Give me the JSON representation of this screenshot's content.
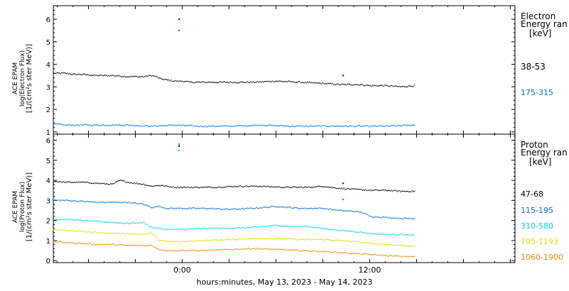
{
  "x_axis": {
    "label": "hours:minutes, May 13, 2023 - May 14, 2023",
    "ticks": [
      {
        "hour": 24,
        "label": "0:00"
      },
      {
        "hour": 36,
        "label": "12:00"
      }
    ],
    "range_hours": [
      15.75,
      45.3
    ]
  },
  "chart_data": [
    {
      "type": "scatter",
      "panel": "electron",
      "ylabel": [
        "ACE EPAM",
        "log(Electron Flux)",
        "[1/(cm²s ster MeV)]"
      ],
      "ylim": [
        0.9,
        6.6
      ],
      "yticks": [
        1,
        2,
        3,
        4,
        5,
        6
      ],
      "legend": {
        "title": "Electron",
        "subtitle": "Energy ran",
        "unit": "[keV]"
      },
      "series": [
        {
          "name": "38-53",
          "color": "#000000",
          "x": [
            15.75,
            16.5,
            17.0,
            17.6,
            18.5,
            19.5,
            20.5,
            21.5,
            22.0,
            22.3,
            22.6,
            23.0,
            23.5,
            24.0,
            24.5,
            25.5,
            27.0,
            28.5,
            30.0,
            31.5,
            33.0,
            34.0,
            34.6,
            35.2,
            36.0,
            37.0,
            38.0,
            38.9
          ],
          "y": [
            3.6,
            3.6,
            3.55,
            3.55,
            3.5,
            3.5,
            3.45,
            3.45,
            3.5,
            3.45,
            3.35,
            3.3,
            3.25,
            3.25,
            3.2,
            3.2,
            3.2,
            3.2,
            3.25,
            3.2,
            3.15,
            3.1,
            3.1,
            3.1,
            3.05,
            3.05,
            3.0,
            3.05
          ],
          "spikes": [
            {
              "x": 23.8,
              "y": 6.0
            },
            {
              "x": 34.3,
              "y": 3.5
            }
          ]
        },
        {
          "name": "175-315",
          "color": "#0070cc",
          "x": [
            15.75,
            16.5,
            17.6,
            19.0,
            20.5,
            22.0,
            23.5,
            25.0,
            27.0,
            29.0,
            31.0,
            33.0,
            35.0,
            37.0,
            38.9
          ],
          "y": [
            1.35,
            1.3,
            1.3,
            1.3,
            1.3,
            1.25,
            1.3,
            1.25,
            1.25,
            1.3,
            1.25,
            1.25,
            1.25,
            1.25,
            1.3
          ],
          "spikes": [
            {
              "x": 23.8,
              "y": 5.5
            }
          ]
        }
      ]
    },
    {
      "type": "scatter",
      "panel": "proton",
      "ylabel": [
        "ACE EPAM",
        "log(Proton Flux)",
        "[1/(cm²s ster MeV)]"
      ],
      "ylim": [
        -0.1,
        6.3
      ],
      "yticks": [
        0,
        1,
        2,
        3,
        4,
        5,
        6
      ],
      "legend": {
        "title": "Proton",
        "subtitle": "Energy ran",
        "unit": "[keV]"
      },
      "series": [
        {
          "name": "47-68",
          "color": "#000000",
          "x": [
            15.75,
            16.5,
            17.6,
            18.5,
            19.5,
            20.0,
            20.5,
            21.0,
            21.5,
            22.0,
            22.5,
            23.0,
            23.5,
            24.5,
            26.0,
            27.5,
            29.0,
            30.5,
            32.0,
            33.0,
            34.0,
            35.0,
            36.0,
            37.0,
            38.0,
            38.9
          ],
          "y": [
            3.95,
            3.9,
            3.9,
            3.85,
            3.8,
            4.0,
            3.9,
            3.85,
            3.8,
            3.7,
            3.75,
            3.7,
            3.65,
            3.65,
            3.65,
            3.7,
            3.7,
            3.65,
            3.65,
            3.7,
            3.6,
            3.55,
            3.5,
            3.5,
            3.45,
            3.45
          ],
          "spikes": [
            {
              "x": 23.8,
              "y": 5.7
            },
            {
              "x": 34.3,
              "y": 3.85
            }
          ]
        },
        {
          "name": "115-195",
          "color": "#0070cc",
          "x": [
            15.75,
            16.5,
            17.6,
            18.5,
            19.5,
            20.5,
            21.5,
            22.0,
            22.5,
            23.0,
            24.0,
            25.5,
            27.0,
            28.5,
            30.0,
            31.5,
            33.0,
            34.0,
            35.0,
            35.5,
            36.0,
            37.0,
            38.0,
            38.9
          ],
          "y": [
            3.0,
            3.0,
            2.95,
            2.9,
            2.9,
            2.9,
            2.8,
            2.65,
            2.7,
            2.6,
            2.6,
            2.6,
            2.55,
            2.6,
            2.7,
            2.6,
            2.6,
            2.5,
            2.45,
            2.4,
            2.2,
            2.15,
            2.1,
            2.1
          ],
          "spikes": [
            {
              "x": 23.8,
              "y": 5.8
            },
            {
              "x": 34.3,
              "y": 3.05
            }
          ]
        },
        {
          "name": "310-580",
          "color": "#00d8d8",
          "x": [
            15.75,
            16.5,
            17.6,
            18.5,
            19.5,
            20.5,
            21.5,
            22.0,
            22.5,
            23.0,
            24.0,
            25.5,
            27.0,
            28.5,
            30.0,
            31.0,
            32.0,
            33.0,
            34.0,
            35.0,
            36.0,
            37.0,
            38.0,
            38.9
          ],
          "y": [
            2.05,
            2.05,
            2.0,
            1.95,
            1.9,
            1.85,
            1.9,
            1.65,
            1.6,
            1.55,
            1.55,
            1.6,
            1.6,
            1.65,
            1.75,
            1.7,
            1.7,
            1.6,
            1.5,
            1.45,
            1.35,
            1.3,
            1.3,
            1.25
          ],
          "spikes": [
            {
              "x": 23.8,
              "y": 5.5
            }
          ]
        },
        {
          "name": "795-1193",
          "color": "#d8e000",
          "x": [
            15.75,
            16.5,
            17.6,
            18.5,
            19.5,
            20.5,
            21.5,
            22.0,
            22.5,
            23.0,
            24.0,
            25.5,
            27.0,
            28.5,
            30.0,
            31.5,
            33.0,
            34.0,
            35.0,
            36.0,
            37.0,
            38.0,
            38.9
          ],
          "y": [
            1.55,
            1.5,
            1.45,
            1.4,
            1.35,
            1.35,
            1.3,
            1.4,
            1.0,
            0.95,
            0.95,
            1.0,
            1.05,
            1.1,
            1.1,
            1.05,
            1.05,
            1.0,
            0.95,
            0.85,
            0.8,
            0.75,
            0.7
          ]
        },
        {
          "name": "1060-1900",
          "color": "#e88a00",
          "x": [
            15.75,
            16.5,
            17.6,
            18.5,
            19.5,
            20.5,
            21.5,
            22.0,
            22.5,
            23.0,
            24.0,
            25.5,
            27.0,
            28.5,
            30.0,
            31.5,
            33.0,
            34.0,
            35.0,
            36.0,
            37.0,
            38.0,
            38.9
          ],
          "y": [
            0.95,
            0.9,
            0.85,
            0.8,
            0.8,
            0.75,
            0.75,
            0.75,
            0.55,
            0.5,
            0.5,
            0.5,
            0.55,
            0.6,
            0.55,
            0.5,
            0.45,
            0.4,
            0.35,
            0.3,
            0.25,
            0.2,
            0.2
          ]
        }
      ]
    }
  ]
}
